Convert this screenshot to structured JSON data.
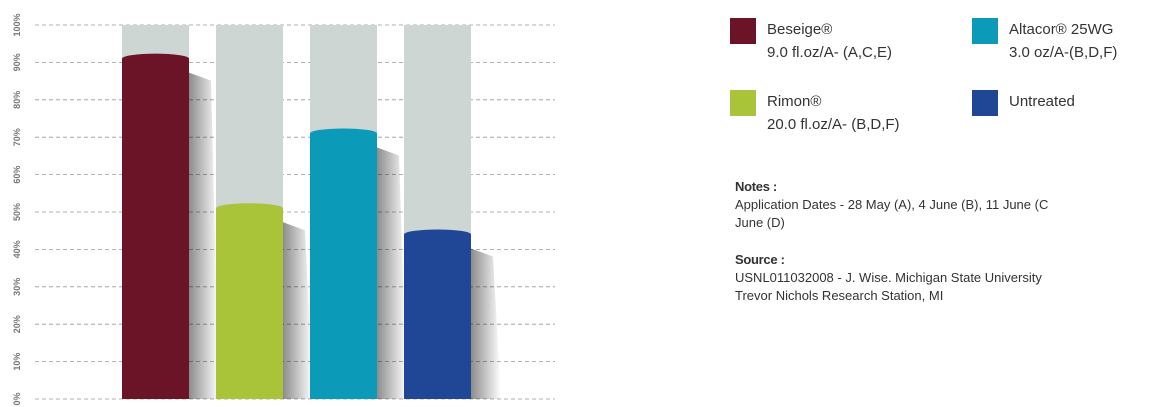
{
  "chart_data": {
    "type": "bar",
    "series": [
      {
        "name": "Beseige®",
        "dose": "9.0 fl.oz/A- (A,C,E)",
        "color": "#6b1428",
        "values": [
          91
        ]
      },
      {
        "name": "Rimon®",
        "dose": "20.0 fl.oz/A- (B,D,F)",
        "color": "#aac43a",
        "values": [
          51
        ]
      },
      {
        "name": "Altacor® 25WG",
        "dose": "3.0 oz/A-(B,D,F)",
        "color": "#0b9ab8",
        "values": [
          71
        ]
      },
      {
        "name": "Untreated",
        "color": "#1f4796",
        "values": [
          44
        ]
      }
    ],
    "ylim": [
      0,
      100
    ],
    "yticks": [
      {
        "value": 0,
        "label": "0%"
      },
      {
        "value": 10,
        "label": "10%"
      },
      {
        "value": 20,
        "label": "20%"
      },
      {
        "value": 30,
        "label": "30%"
      },
      {
        "value": 40,
        "label": "40%"
      },
      {
        "value": 50,
        "label": "50%"
      },
      {
        "value": 60,
        "label": "60%"
      },
      {
        "value": 70,
        "label": "70%"
      },
      {
        "value": 80,
        "label": "80%"
      },
      {
        "value": 90,
        "label": "90%"
      },
      {
        "value": 100,
        "label": "100%"
      }
    ],
    "grid": true,
    "notes_title": "Notes :",
    "notes": [
      "Application Dates - 28 May (A), 4 June (B), 11 June (C",
      "June (D)"
    ],
    "source_title": "Source :",
    "source": [
      "USNL011032008 - J. Wise. Michigan State University",
      "Trevor Nichols Research Station, MI"
    ]
  }
}
